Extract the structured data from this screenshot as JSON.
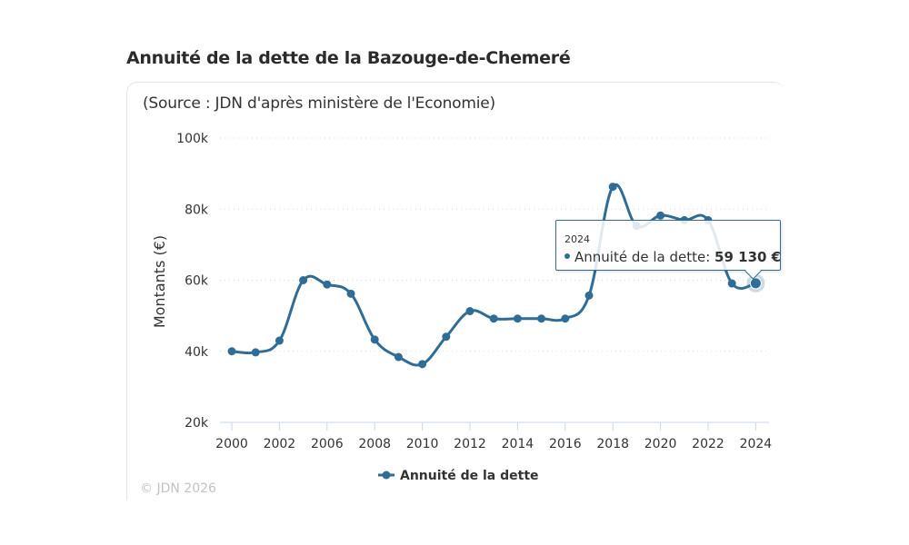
{
  "page": {
    "title": "Annuité de la dette de la Bazouge-de-Chemeré",
    "source": "(Source : JDN d'après ministère de l'Economie)",
    "copyright": "© JDN 2026"
  },
  "tooltip": {
    "year": "2024",
    "label": "Annuité de la dette: ",
    "value": "59 130 €"
  },
  "chart_data": {
    "type": "line",
    "title": "Annuité de la dette de la Bazouge-de-Chemeré",
    "subtitle": "(Source : JDN d'après ministère de l'Economie)",
    "xlabel": "",
    "ylabel": "Montants (€)",
    "ylim": [
      20000,
      100000
    ],
    "yticks": [
      20000,
      40000,
      60000,
      80000,
      100000
    ],
    "ytick_labels": [
      "20k",
      "40k",
      "60k",
      "80k",
      "100k"
    ],
    "grid": true,
    "legend": "bottom-center",
    "categories": [
      "2000",
      "2001",
      "2002",
      "2004",
      "2006",
      "2007",
      "2008",
      "2009",
      "2010",
      "2011",
      "2012",
      "2013",
      "2014",
      "2015",
      "2016",
      "2017",
      "2018",
      "2019",
      "2020",
      "2021",
      "2022",
      "2023",
      "2024"
    ],
    "xtick_labels": [
      "2000",
      "2002",
      "2006",
      "2008",
      "2010",
      "2012",
      "2014",
      "2016",
      "2018",
      "2020",
      "2022",
      "2024"
    ],
    "series": [
      {
        "name": "Annuité de la dette",
        "color": "#2f6d96",
        "values": [
          40000,
          39700,
          43000,
          60000,
          58800,
          56200,
          43300,
          38400,
          36400,
          44100,
          51300,
          49200,
          49200,
          49200,
          49200,
          55700,
          86300,
          75300,
          78200,
          76900,
          76900,
          59100,
          59130
        ]
      }
    ],
    "highlighted_point": {
      "category": "2024",
      "value": 59130
    }
  }
}
